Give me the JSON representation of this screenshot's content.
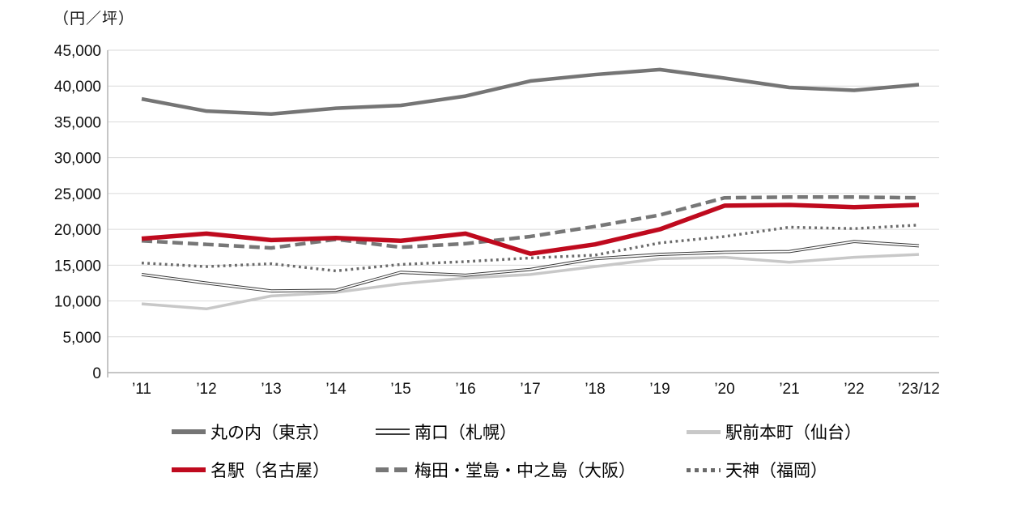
{
  "title": "（円／坪）",
  "chart_data": {
    "type": "line",
    "title": "（円／坪）",
    "x_categories": [
      "’11",
      "’12",
      "’13",
      "’14",
      "’15",
      "’16",
      "’17",
      "’18",
      "’19",
      "’20",
      "’21",
      "’22",
      "’23/12"
    ],
    "ylim": [
      0,
      45000
    ],
    "ytick_step": 5000,
    "ytick_labels": [
      "0",
      "5,000",
      "10,000",
      "15,000",
      "20,000",
      "25,000",
      "30,000",
      "35,000",
      "40,000",
      "45,000"
    ],
    "grid": "horizontal-light-gray",
    "legend_position": "bottom-two-rows",
    "series": [
      {
        "key": "tokyo",
        "name": "丸の内（東京）",
        "style": "solid-thick",
        "color": "#757575",
        "values": [
          38200,
          36500,
          36100,
          36900,
          37300,
          38600,
          40700,
          41600,
          42300,
          41100,
          39800,
          39400,
          40200
        ]
      },
      {
        "key": "sapporo",
        "name": "南口（札幌）",
        "style": "double",
        "color": "#3a3a3a",
        "values": [
          13700,
          12500,
          11400,
          11500,
          14000,
          13600,
          14400,
          15900,
          16500,
          16800,
          16900,
          18300,
          17700
        ]
      },
      {
        "key": "sendai",
        "name": "駅前本町（仙台）",
        "style": "solid",
        "color": "#c8c8c8",
        "values": [
          9600,
          8900,
          10700,
          11200,
          12400,
          13200,
          13700,
          14800,
          15900,
          16100,
          15400,
          16100,
          16500
        ]
      },
      {
        "key": "nagoya",
        "name": "名駅（名古屋）",
        "style": "solid-thick",
        "color": "#bf0a1e",
        "values": [
          18700,
          19400,
          18500,
          18800,
          18400,
          19400,
          16600,
          17900,
          20000,
          23300,
          23400,
          23100,
          23400
        ]
      },
      {
        "key": "osaka",
        "name": "梅田・堂島・中之島（大阪）",
        "style": "dashed",
        "color": "#777777",
        "values": [
          18400,
          17900,
          17400,
          18600,
          17500,
          18000,
          19000,
          20400,
          22000,
          24400,
          24500,
          24500,
          24400
        ]
      },
      {
        "key": "fukuoka",
        "name": "天神（福岡）",
        "style": "dotted",
        "color": "#6a6a6a",
        "values": [
          15300,
          14800,
          15200,
          14200,
          15100,
          15500,
          16000,
          16400,
          18100,
          19000,
          20300,
          20100,
          20600
        ]
      }
    ]
  }
}
